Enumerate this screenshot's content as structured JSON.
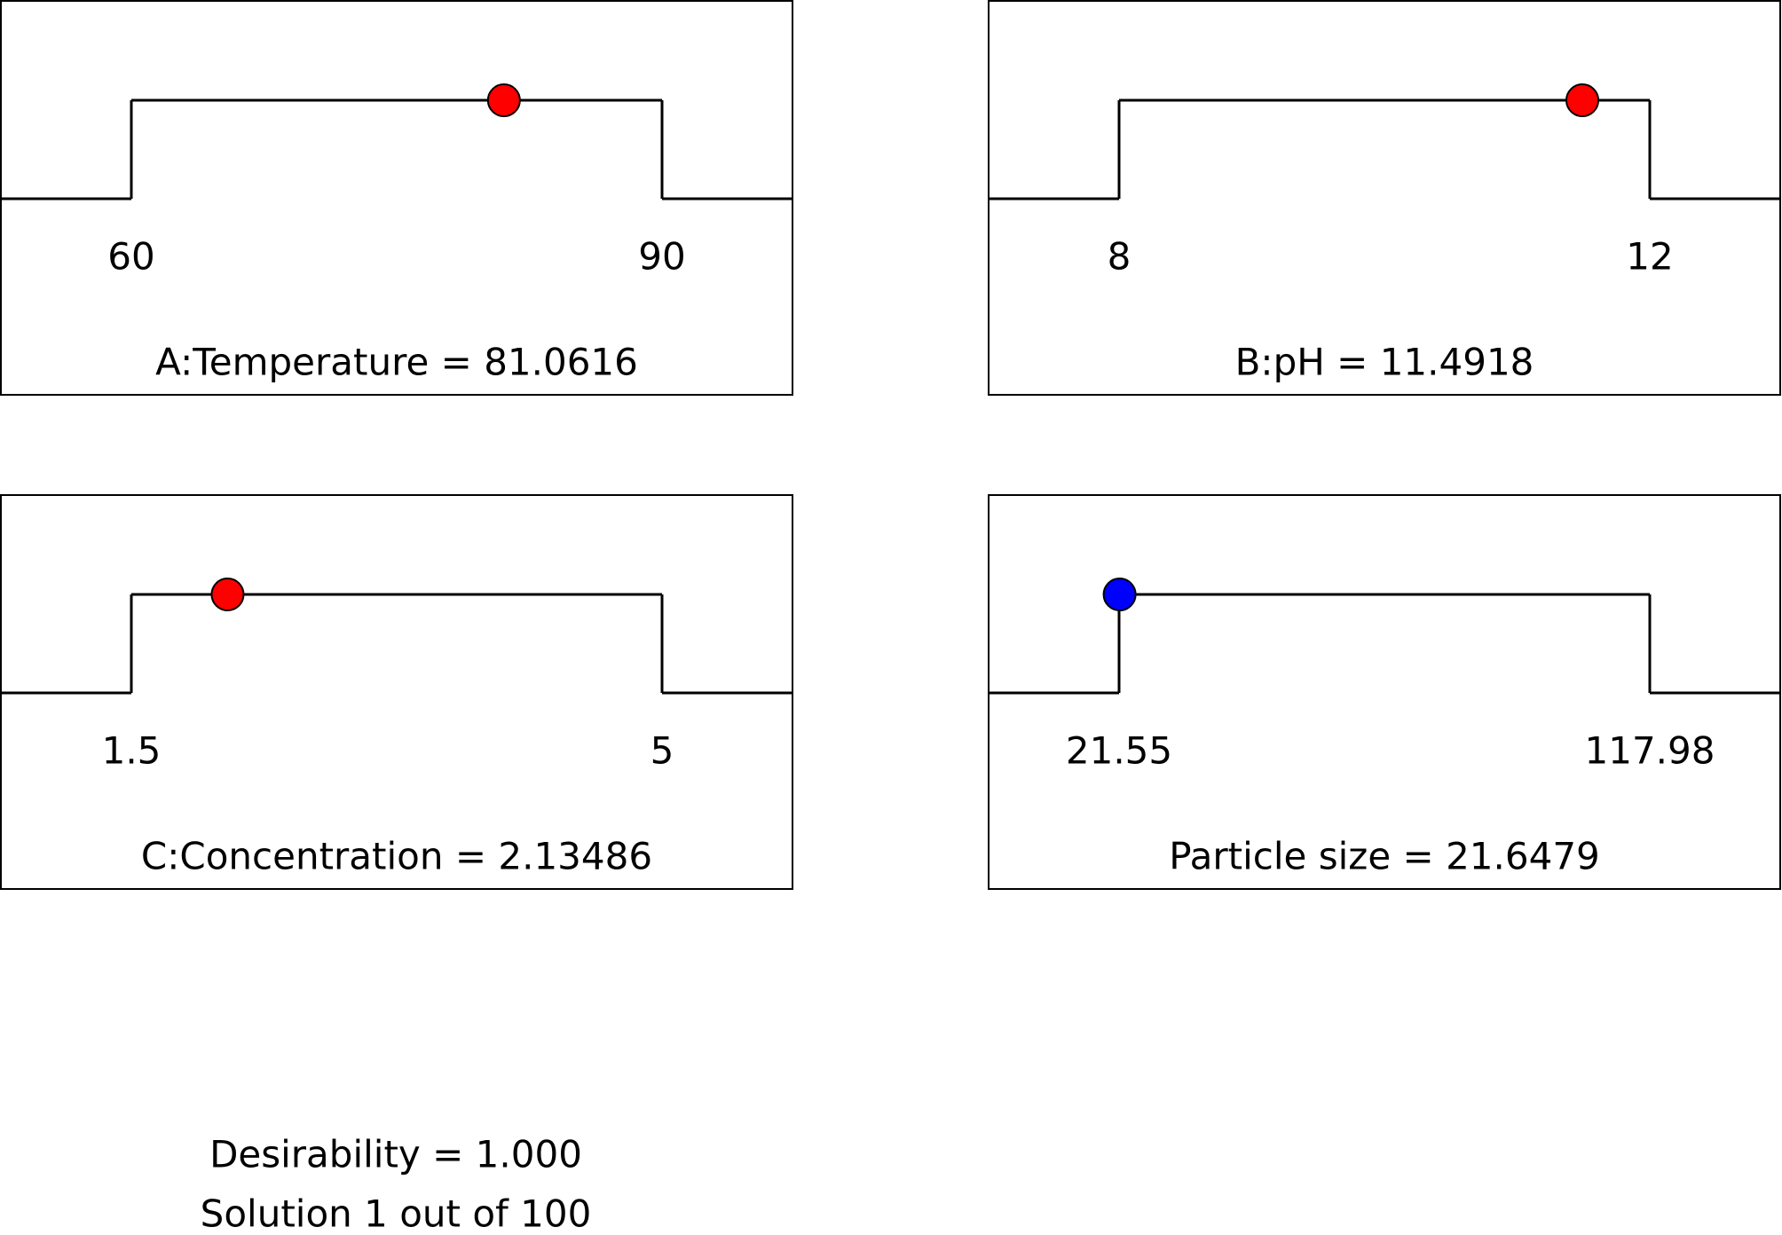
{
  "chart_data": [
    {
      "type": "ramp",
      "title": "A:Temperature = 81.0616",
      "value": 81.0616,
      "xlim": [
        60,
        90
      ],
      "xticks": [
        60,
        90
      ],
      "color": "#ff0000"
    },
    {
      "type": "ramp",
      "title": "B:pH = 11.4918",
      "value": 11.4918,
      "xlim": [
        8,
        12
      ],
      "xticks": [
        8,
        12
      ],
      "color": "#ff0000"
    },
    {
      "type": "ramp",
      "title": "C:Concentration = 2.13486",
      "value": 2.13486,
      "xlim": [
        1.5,
        5
      ],
      "xticks": [
        1.5,
        5
      ],
      "color": "#ff0000"
    },
    {
      "type": "ramp",
      "title": "Particle size = 21.6479",
      "value": 21.6479,
      "xlim": [
        21.55,
        117.98
      ],
      "xticks": [
        21.55,
        117.98
      ],
      "color": "#0000ff"
    }
  ],
  "footer": {
    "desirability": "Desirability = 1.000",
    "solution": "Solution 1 out of 100"
  }
}
